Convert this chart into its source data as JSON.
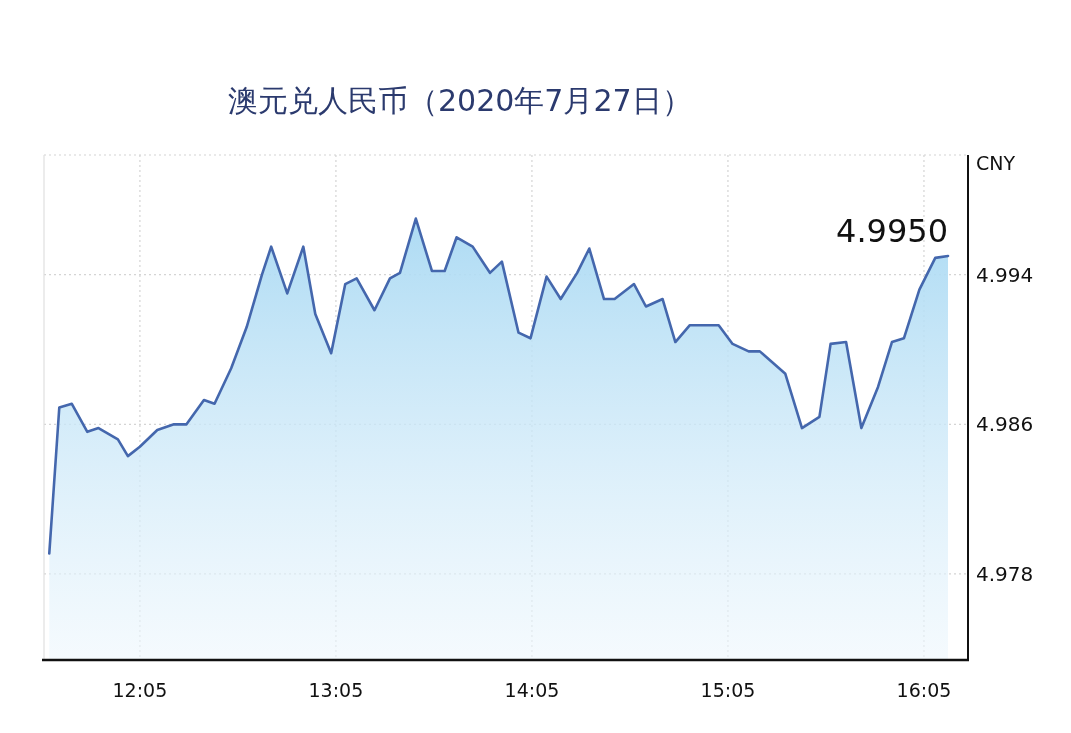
{
  "chart_data": {
    "type": "area",
    "title": "澳元兑人民币（2020年7月27日）",
    "ylabel": "CNY",
    "color": "#4467ad",
    "grid": true,
    "xlim": [
      11.594,
      16.308
    ],
    "ylim": [
      4.9734,
      5.0004
    ],
    "xticks": [
      {
        "value": 12.0833,
        "label": "12:05"
      },
      {
        "value": 13.0833,
        "label": "13:05"
      },
      {
        "value": 14.0833,
        "label": "14:05"
      },
      {
        "value": 15.0833,
        "label": "15:05"
      },
      {
        "value": 16.0833,
        "label": "16:05"
      }
    ],
    "yticks": [
      4.978,
      4.986,
      4.994
    ],
    "annotations": [
      {
        "text": "4.9950",
        "x": 16.206,
        "y": 4.995
      }
    ],
    "x": [
      11.621,
      11.672,
      11.736,
      11.815,
      11.872,
      11.971,
      12.022,
      12.083,
      12.172,
      12.257,
      12.321,
      12.41,
      12.464,
      12.549,
      12.628,
      12.706,
      12.753,
      12.835,
      12.917,
      12.978,
      13.059,
      13.131,
      13.189,
      13.28,
      13.359,
      13.41,
      13.491,
      13.573,
      13.638,
      13.699,
      13.781,
      13.869,
      13.93,
      14.015,
      14.076,
      14.158,
      14.23,
      14.314,
      14.376,
      14.451,
      14.505,
      14.604,
      14.665,
      14.75,
      14.815,
      14.889,
      15.036,
      15.107,
      15.189,
      15.246,
      15.376,
      15.461,
      15.55,
      15.607,
      15.686,
      15.764,
      15.849,
      15.92,
      15.981,
      16.06,
      16.141,
      16.206
    ],
    "values": [
      4.9791,
      4.9869,
      4.9871,
      4.9856,
      4.9858,
      4.9852,
      4.9843,
      4.9848,
      4.9857,
      4.986,
      4.986,
      4.9873,
      4.9871,
      4.989,
      4.9912,
      4.994,
      4.9955,
      4.993,
      4.9955,
      4.9919,
      4.9898,
      4.9935,
      4.9938,
      4.9921,
      4.9938,
      4.9941,
      4.997,
      4.9942,
      4.9942,
      4.996,
      4.9955,
      4.9941,
      4.9947,
      4.9909,
      4.9906,
      4.9939,
      4.9927,
      4.9941,
      4.9954,
      4.9927,
      4.9927,
      4.9935,
      4.9923,
      4.9927,
      4.9904,
      4.9913,
      4.9913,
      4.9903,
      4.9899,
      4.9899,
      4.9887,
      4.9858,
      4.9864,
      4.9903,
      4.9904,
      4.9858,
      4.988,
      4.9904,
      4.9906,
      4.9932,
      4.9949,
      4.995
    ]
  }
}
